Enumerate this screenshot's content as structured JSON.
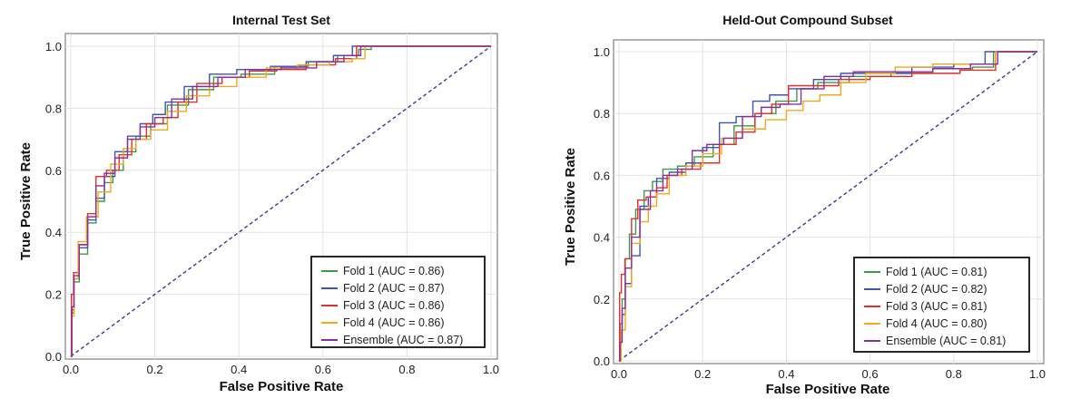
{
  "chart_data": [
    {
      "type": "line",
      "title": "Internal Test Set",
      "xlabel": "False Positive Rate",
      "ylabel": "True Positive Rate",
      "xlim": [
        0,
        1
      ],
      "ylim": [
        0,
        1
      ],
      "xticks": [
        "0.0",
        "0.2",
        "0.4",
        "0.6",
        "0.8",
        "1.0"
      ],
      "yticks": [
        "0.0",
        "0.2",
        "0.4",
        "0.6",
        "0.8",
        "1.0"
      ],
      "grid": true,
      "legend_position": "lower-right",
      "diagonal": {
        "style": "dashed",
        "color": "#3d3a8c"
      },
      "series": [
        {
          "name": "Fold 1 (AUC = 0.86)",
          "color": "#3a9a48",
          "x": [
            0,
            0.005,
            0.01,
            0.03,
            0.05,
            0.07,
            0.09,
            0.11,
            0.14,
            0.17,
            0.21,
            0.25,
            0.31,
            0.37,
            0.44,
            0.53,
            0.6,
            0.67,
            0.7,
            0.73,
            1
          ],
          "y": [
            0,
            0.14,
            0.24,
            0.33,
            0.43,
            0.5,
            0.56,
            0.6,
            0.66,
            0.71,
            0.75,
            0.81,
            0.86,
            0.9,
            0.91,
            0.935,
            0.95,
            0.97,
            0.99,
            1,
            1
          ]
        },
        {
          "name": "Fold 2 (AUC = 0.87)",
          "color": "#3f56b0",
          "x": [
            0,
            0.005,
            0.01,
            0.03,
            0.05,
            0.07,
            0.09,
            0.12,
            0.15,
            0.18,
            0.21,
            0.24,
            0.3,
            0.36,
            0.43,
            0.52,
            0.6,
            0.65,
            0.69,
            1
          ],
          "y": [
            0,
            0.15,
            0.25,
            0.35,
            0.44,
            0.51,
            0.58,
            0.66,
            0.71,
            0.75,
            0.78,
            0.82,
            0.87,
            0.91,
            0.925,
            0.935,
            0.95,
            0.97,
            1,
            1
          ]
        },
        {
          "name": "Fold 3 (AUC = 0.86)",
          "color": "#e0302c",
          "x": [
            0,
            0.003,
            0.01,
            0.03,
            0.05,
            0.07,
            0.1,
            0.13,
            0.16,
            0.2,
            0.24,
            0.27,
            0.33,
            0.39,
            0.46,
            0.52,
            0.6,
            0.66,
            0.7,
            1
          ],
          "y": [
            0,
            0.2,
            0.27,
            0.36,
            0.46,
            0.58,
            0.6,
            0.65,
            0.7,
            0.75,
            0.77,
            0.82,
            0.88,
            0.9,
            0.92,
            0.925,
            0.94,
            0.96,
            1,
            1
          ]
        },
        {
          "name": "Fold 4 (AUC = 0.86)",
          "color": "#f2a81d",
          "x": [
            0,
            0.005,
            0.01,
            0.025,
            0.05,
            0.08,
            0.11,
            0.14,
            0.17,
            0.21,
            0.25,
            0.3,
            0.36,
            0.43,
            0.5,
            0.58,
            0.65,
            0.69,
            0.71,
            1
          ],
          "y": [
            0,
            0.13,
            0.25,
            0.37,
            0.45,
            0.53,
            0.62,
            0.67,
            0.7,
            0.73,
            0.79,
            0.84,
            0.87,
            0.9,
            0.93,
            0.94,
            0.95,
            0.96,
            1,
            1
          ]
        },
        {
          "name": "Ensemble (AUC = 0.87)",
          "color": "#8c2d9c",
          "x": [
            0,
            0.005,
            0.01,
            0.03,
            0.05,
            0.07,
            0.09,
            0.12,
            0.15,
            0.18,
            0.22,
            0.26,
            0.32,
            0.38,
            0.45,
            0.55,
            0.62,
            0.68,
            0.7,
            1
          ],
          "y": [
            0,
            0.16,
            0.26,
            0.36,
            0.45,
            0.55,
            0.59,
            0.64,
            0.7,
            0.74,
            0.77,
            0.83,
            0.87,
            0.9,
            0.925,
            0.93,
            0.95,
            0.97,
            1,
            1
          ]
        }
      ]
    },
    {
      "type": "line",
      "title": "Held-Out Compound Subset",
      "xlabel": "False Positive Rate",
      "ylabel": "True Positive Rate",
      "xlim": [
        0,
        1
      ],
      "ylim": [
        0,
        1
      ],
      "xticks": [
        "0.0",
        "0.2",
        "0.4",
        "0.6",
        "0.8",
        "1.0"
      ],
      "yticks": [
        "0.0",
        "0.2",
        "0.4",
        "0.6",
        "0.8",
        "1.0"
      ],
      "grid": true,
      "legend_position": "lower-right",
      "diagonal": {
        "style": "dashed",
        "color": "#3d3a8c"
      },
      "series": [
        {
          "name": "Fold 1 (AUC = 0.81)",
          "color": "#3a9a48",
          "x": [
            0,
            0.005,
            0.01,
            0.02,
            0.03,
            0.05,
            0.07,
            0.09,
            0.12,
            0.16,
            0.2,
            0.25,
            0.3,
            0.35,
            0.4,
            0.45,
            0.5,
            0.6,
            0.7,
            0.8,
            0.89,
            0.9,
            1
          ],
          "y": [
            0,
            0.12,
            0.2,
            0.33,
            0.41,
            0.49,
            0.55,
            0.58,
            0.62,
            0.63,
            0.66,
            0.7,
            0.76,
            0.8,
            0.84,
            0.88,
            0.9,
            0.92,
            0.93,
            0.945,
            0.95,
            1,
            1
          ]
        },
        {
          "name": "Fold 2 (AUC = 0.82)",
          "color": "#3f56b0",
          "x": [
            0,
            0.005,
            0.01,
            0.02,
            0.04,
            0.06,
            0.08,
            0.1,
            0.14,
            0.18,
            0.22,
            0.26,
            0.3,
            0.34,
            0.38,
            0.43,
            0.5,
            0.56,
            0.65,
            0.75,
            0.85,
            0.9,
            1
          ],
          "y": [
            0,
            0.1,
            0.15,
            0.25,
            0.34,
            0.5,
            0.53,
            0.59,
            0.61,
            0.64,
            0.69,
            0.77,
            0.79,
            0.84,
            0.86,
            0.88,
            0.91,
            0.93,
            0.93,
            0.95,
            0.96,
            1,
            1
          ]
        },
        {
          "name": "Fold 3 (AUC = 0.81)",
          "color": "#e0302c",
          "x": [
            0,
            0.003,
            0.008,
            0.02,
            0.04,
            0.05,
            0.08,
            0.1,
            0.13,
            0.17,
            0.22,
            0.26,
            0.3,
            0.35,
            0.38,
            0.43,
            0.5,
            0.55,
            0.65,
            0.75,
            0.88,
            0.92,
            1
          ],
          "y": [
            0,
            0.22,
            0.28,
            0.33,
            0.46,
            0.52,
            0.53,
            0.56,
            0.6,
            0.62,
            0.64,
            0.7,
            0.74,
            0.8,
            0.83,
            0.89,
            0.89,
            0.91,
            0.92,
            0.93,
            0.94,
            1,
            1
          ]
        },
        {
          "name": "Fold 4 (AUC = 0.80)",
          "color": "#f2a81d",
          "x": [
            0,
            0.01,
            0.02,
            0.04,
            0.06,
            0.08,
            0.1,
            0.14,
            0.18,
            0.22,
            0.27,
            0.32,
            0.38,
            0.42,
            0.46,
            0.5,
            0.56,
            0.62,
            0.7,
            0.8,
            0.88,
            0.92,
            1
          ],
          "y": [
            0,
            0.1,
            0.24,
            0.38,
            0.45,
            0.5,
            0.54,
            0.6,
            0.63,
            0.67,
            0.72,
            0.75,
            0.78,
            0.81,
            0.84,
            0.86,
            0.9,
            0.93,
            0.95,
            0.96,
            0.96,
            1,
            1
          ]
        },
        {
          "name": "Ensemble (AUC = 0.81)",
          "color": "#8c2d9c",
          "x": [
            0,
            0.005,
            0.01,
            0.02,
            0.04,
            0.06,
            0.09,
            0.12,
            0.16,
            0.19,
            0.23,
            0.27,
            0.32,
            0.36,
            0.41,
            0.46,
            0.52,
            0.6,
            0.7,
            0.8,
            0.88,
            0.93,
            1
          ],
          "y": [
            0,
            0.06,
            0.17,
            0.3,
            0.4,
            0.49,
            0.55,
            0.6,
            0.62,
            0.68,
            0.7,
            0.72,
            0.79,
            0.82,
            0.83,
            0.88,
            0.92,
            0.935,
            0.935,
            0.945,
            0.96,
            1,
            1
          ]
        }
      ]
    }
  ]
}
